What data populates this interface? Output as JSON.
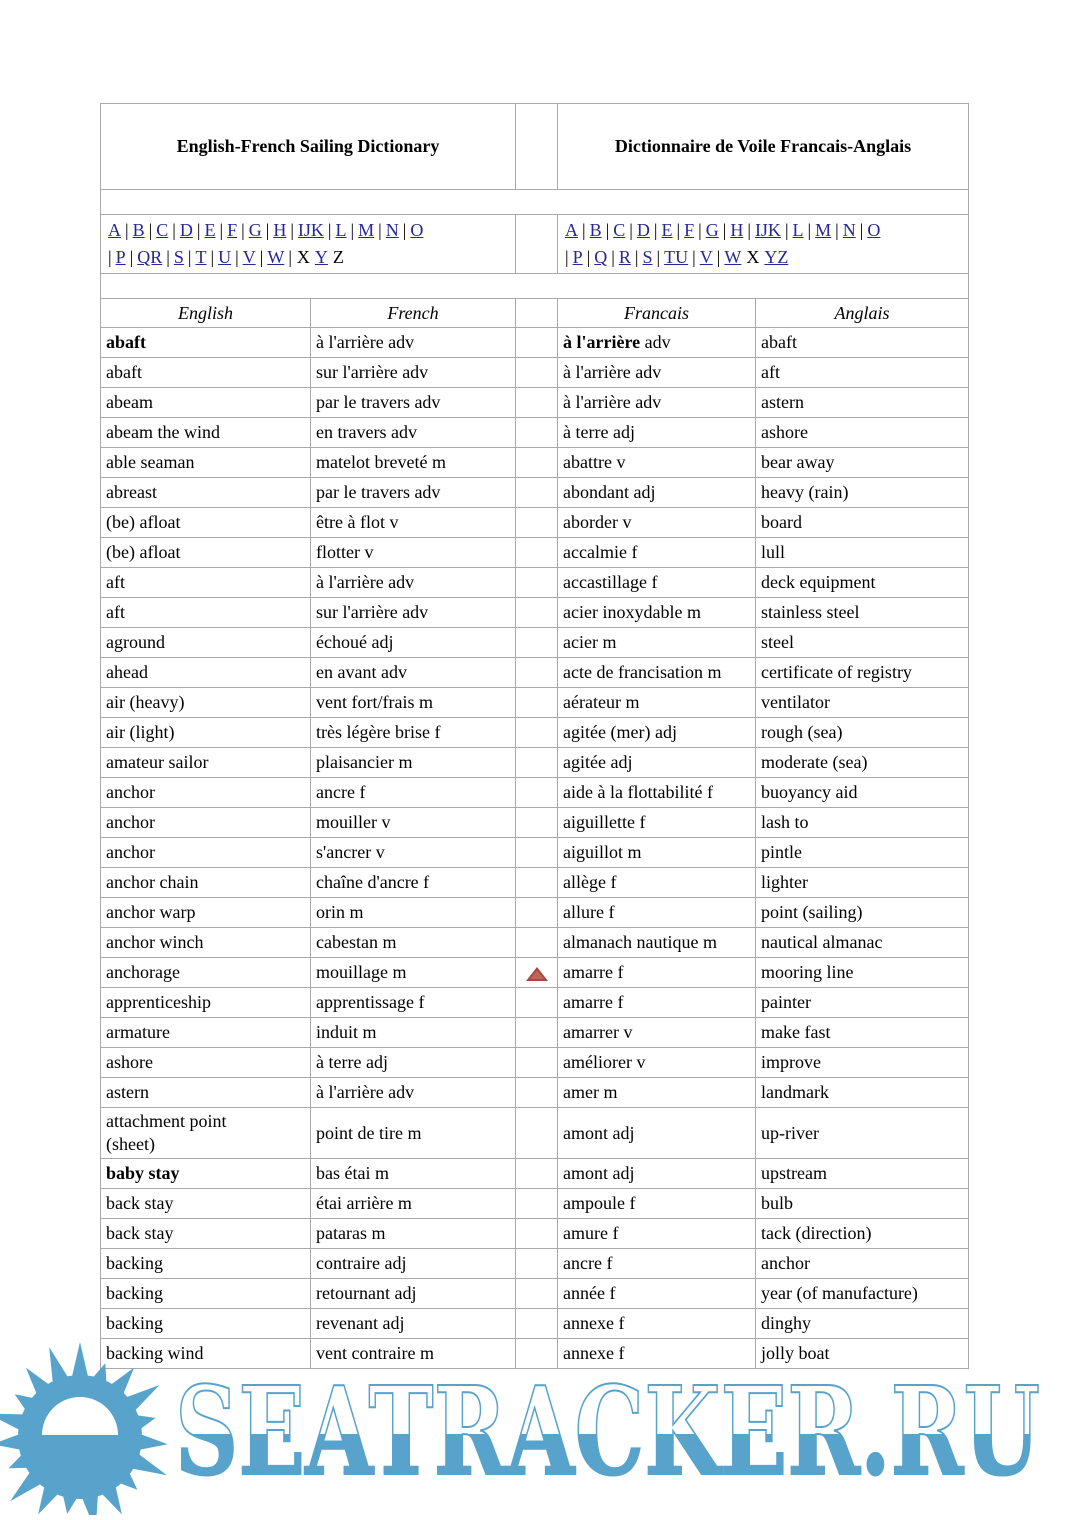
{
  "titles": {
    "left": "English-French Sailing Dictionary",
    "right": "Dictionnaire de Voile Francais-Anglais"
  },
  "alphabet": {
    "left": {
      "line1": [
        {
          "t": "A",
          "l": 1
        },
        {
          "t": "|"
        },
        {
          "t": "B",
          "l": 1
        },
        {
          "t": "|"
        },
        {
          "t": "C",
          "l": 1
        },
        {
          "t": "|"
        },
        {
          "t": "D",
          "l": 1
        },
        {
          "t": "|"
        },
        {
          "t": "E",
          "l": 1
        },
        {
          "t": "|"
        },
        {
          "t": "F",
          "l": 1
        },
        {
          "t": "|"
        },
        {
          "t": "G",
          "l": 1
        },
        {
          "t": "|"
        },
        {
          "t": "H",
          "l": 1
        },
        {
          "t": "|"
        },
        {
          "t": "IJK",
          "l": 1
        },
        {
          "t": "|"
        },
        {
          "t": "L",
          "l": 1
        },
        {
          "t": "|"
        },
        {
          "t": "M",
          "l": 1
        },
        {
          "t": "|"
        },
        {
          "t": "N",
          "l": 1
        },
        {
          "t": "|"
        },
        {
          "t": "O",
          "l": 1
        }
      ],
      "line2": [
        {
          "t": "|"
        },
        {
          "t": "P",
          "l": 1
        },
        {
          "t": "|"
        },
        {
          "t": "QR",
          "l": 1
        },
        {
          "t": "|"
        },
        {
          "t": "S",
          "l": 1
        },
        {
          "t": "|"
        },
        {
          "t": "T",
          "l": 1
        },
        {
          "t": "|"
        },
        {
          "t": "U",
          "l": 1
        },
        {
          "t": "|"
        },
        {
          "t": "V",
          "l": 1
        },
        {
          "t": "|"
        },
        {
          "t": "W",
          "l": 1
        },
        {
          "t": "|"
        },
        {
          "t": "X"
        },
        {
          "t": "Y",
          "l": 1
        },
        {
          "t": "Z"
        }
      ]
    },
    "right": {
      "line1": [
        {
          "t": "A",
          "l": 1
        },
        {
          "t": "|"
        },
        {
          "t": "B",
          "l": 1
        },
        {
          "t": "|"
        },
        {
          "t": "C",
          "l": 1
        },
        {
          "t": "|"
        },
        {
          "t": "D",
          "l": 1
        },
        {
          "t": "|"
        },
        {
          "t": "E",
          "l": 1
        },
        {
          "t": "|"
        },
        {
          "t": "F",
          "l": 1
        },
        {
          "t": "|"
        },
        {
          "t": "G",
          "l": 1
        },
        {
          "t": "|"
        },
        {
          "t": "H",
          "l": 1
        },
        {
          "t": "|"
        },
        {
          "t": "IJK",
          "l": 1
        },
        {
          "t": "|"
        },
        {
          "t": "L",
          "l": 1
        },
        {
          "t": "|"
        },
        {
          "t": "M",
          "l": 1
        },
        {
          "t": "|"
        },
        {
          "t": "N",
          "l": 1
        },
        {
          "t": "|"
        },
        {
          "t": "O",
          "l": 1
        }
      ],
      "line2": [
        {
          "t": "|"
        },
        {
          "t": "P",
          "l": 1
        },
        {
          "t": "|"
        },
        {
          "t": "Q",
          "l": 1
        },
        {
          "t": "|"
        },
        {
          "t": "R",
          "l": 1
        },
        {
          "t": "|"
        },
        {
          "t": "S",
          "l": 1
        },
        {
          "t": "|"
        },
        {
          "t": "TU",
          "l": 1
        },
        {
          "t": "|"
        },
        {
          "t": "V",
          "l": 1
        },
        {
          "t": "|"
        },
        {
          "t": "W",
          "l": 1
        },
        {
          "t": "X"
        },
        {
          "t": "YZ",
          "l": 1
        }
      ]
    }
  },
  "table": {
    "headers": {
      "en": "English",
      "fr": "French",
      "fra": "Francais",
      "ang": "Anglais"
    },
    "rows": [
      {
        "en": "abaft",
        "enBold": true,
        "fr": "à l'arrière adv",
        "fra": "à l'arrière adv",
        "fraBold": "à l'arrière",
        "ang": "abaft"
      },
      {
        "en": "abaft",
        "fr": "sur l'arrière adv",
        "fra": "à l'arrière adv",
        "ang": "aft"
      },
      {
        "en": "abeam",
        "fr": "par le travers adv",
        "fra": "à l'arrière adv",
        "ang": "astern"
      },
      {
        "en": "abeam the wind",
        "fr": "en travers adv",
        "fra": "à terre adj",
        "ang": "ashore"
      },
      {
        "en": "able seaman",
        "fr": "matelot breveté m",
        "fra": "abattre v",
        "ang": "bear away"
      },
      {
        "en": "abreast",
        "fr": "par le travers adv",
        "fra": "abondant adj",
        "ang": "heavy (rain)"
      },
      {
        "en": "(be) afloat",
        "fr": "être à flot v",
        "fra": "aborder v",
        "ang": "board"
      },
      {
        "en": "(be) afloat",
        "fr": "flotter v",
        "fra": "accalmie f",
        "ang": "lull"
      },
      {
        "en": "aft",
        "fr": "à l'arrière adv",
        "fra": "accastillage f",
        "ang": "deck equipment"
      },
      {
        "en": "aft",
        "fr": "sur l'arrière adv",
        "fra": "acier inoxydable m",
        "ang": "stainless steel"
      },
      {
        "en": "aground",
        "fr": "échoué adj",
        "fra": "acier m",
        "ang": "steel"
      },
      {
        "en": "ahead",
        "fr": "en avant adv",
        "fra": "acte de francisation m",
        "ang": "certificate of registry"
      },
      {
        "en": "air (heavy)",
        "fr": "vent fort/frais m",
        "fra": "aérateur m",
        "ang": "ventilator"
      },
      {
        "en": "air (light)",
        "fr": "très légère brise f",
        "fra": "agitée (mer) adj",
        "ang": "rough (sea)"
      },
      {
        "en": "amateur sailor",
        "fr": "plaisancier m",
        "fra": "agitée adj",
        "ang": "moderate (sea)"
      },
      {
        "en": "anchor",
        "fr": "ancre f",
        "fra": "aide à la flottabilité f",
        "ang": "buoyancy aid"
      },
      {
        "en": "anchor",
        "fr": "mouiller v",
        "fra": "aiguillette f",
        "ang": "lash to"
      },
      {
        "en": "anchor",
        "fr": "s'ancrer v",
        "fra": "aiguillot m",
        "ang": "pintle"
      },
      {
        "en": "anchor chain",
        "fr": "chaîne d'ancre f",
        "fra": "allège f",
        "ang": "lighter"
      },
      {
        "en": "anchor warp",
        "fr": "orin m",
        "fra": "allure f",
        "ang": "point (sailing)"
      },
      {
        "en": "anchor winch",
        "fr": "cabestan m",
        "fra": "almanach nautique m",
        "ang": "nautical almanac"
      },
      {
        "en": "anchorage",
        "fr": "mouillage m",
        "fra": "amarre f",
        "ang": "mooring line",
        "marker": true
      },
      {
        "en": "apprenticeship",
        "fr": "apprentissage f",
        "fra": "amarre f",
        "ang": "painter"
      },
      {
        "en": "armature",
        "fr": "induit m",
        "fra": "amarrer v",
        "ang": "make fast"
      },
      {
        "en": "ashore",
        "fr": "à terre adj",
        "fra": "améliorer v",
        "ang": "improve"
      },
      {
        "en": "astern",
        "fr": "à l'arrière adv",
        "fra": "amer m",
        "ang": "landmark"
      },
      {
        "en": "attachment point (sheet)",
        "fr": "point de tire m",
        "fra": "amont adj",
        "ang": "up-river"
      },
      {
        "en": "baby stay",
        "enBold": true,
        "fr": "bas étai m",
        "fra": "amont adj",
        "ang": "upstream"
      },
      {
        "en": "back stay",
        "fr": "étai arrière m",
        "fra": "ampoule f",
        "ang": "bulb"
      },
      {
        "en": "back stay",
        "fr": "pataras m",
        "fra": "amure f",
        "ang": "tack (direction)"
      },
      {
        "en": "backing",
        "fr": "contraire adj",
        "fra": "ancre f",
        "ang": "anchor"
      },
      {
        "en": "backing",
        "fr": "retournant adj",
        "fra": "année f",
        "ang": "year (of manufacture)"
      },
      {
        "en": "backing",
        "fr": "revenant adj",
        "fra": "annexe f",
        "ang": "dinghy"
      },
      {
        "en": "backing wind",
        "fr": "vent contraire m",
        "fra": "annexe f",
        "ang": "jolly boat"
      }
    ]
  },
  "icons": {
    "up_triangle": "up-triangle-back-to-top"
  },
  "watermark": {
    "text": "SEATRACKER.RU"
  },
  "colors": {
    "link_blue": "#262699",
    "border_gray": "#a9a9a9",
    "triangle_red": "#a8493f",
    "watermark_blue": "#57a3cb"
  }
}
